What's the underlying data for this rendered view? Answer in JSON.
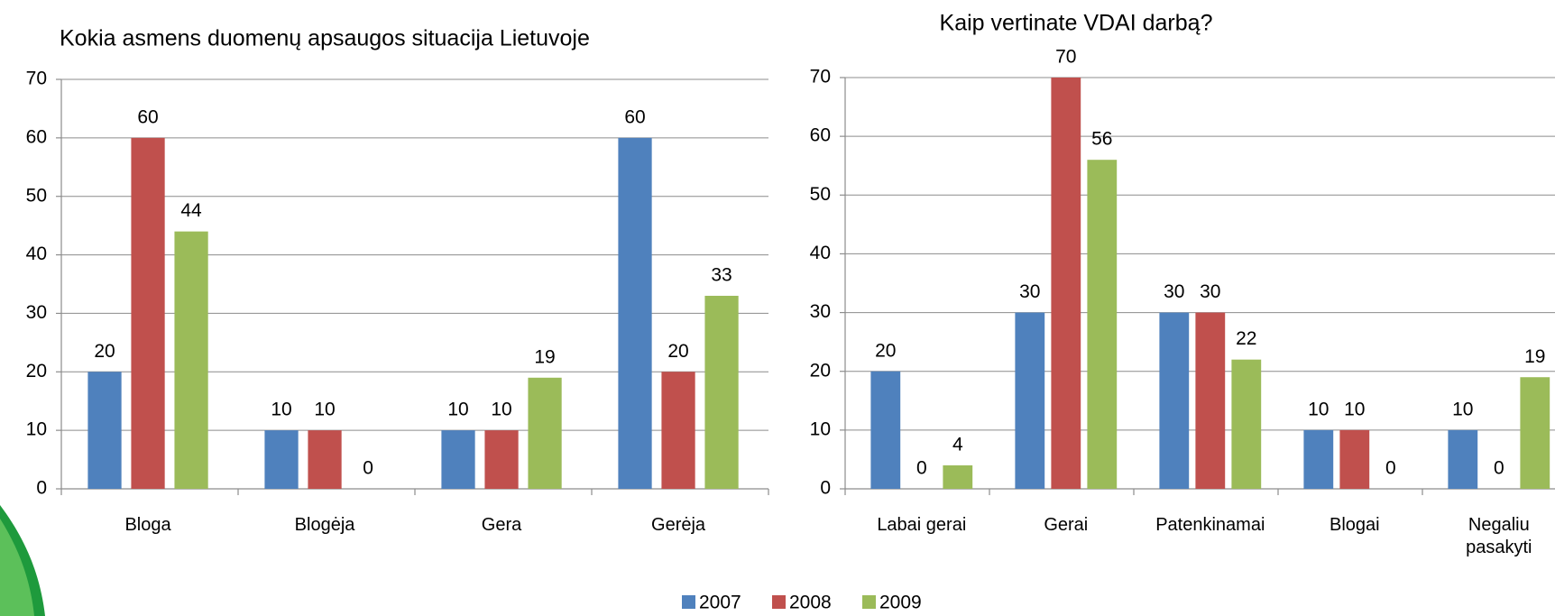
{
  "chart_data": [
    {
      "type": "bar",
      "title": "Kokia asmens duomenų apsaugos situacija Lietuvoje",
      "categories": [
        "Bloga",
        "Blogėja",
        "Gera",
        "Gerėja"
      ],
      "series": [
        {
          "name": "2007",
          "color": "#4f81bd",
          "values": [
            20,
            10,
            10,
            60
          ]
        },
        {
          "name": "2008",
          "color": "#c0504d",
          "values": [
            60,
            10,
            10,
            20
          ]
        },
        {
          "name": "2009",
          "color": "#9bbb59",
          "values": [
            44,
            0,
            19,
            33
          ]
        }
      ],
      "ylim": [
        0,
        70
      ],
      "yticks": [
        0,
        10,
        20,
        30,
        40,
        50,
        60,
        70
      ],
      "grid": true
    },
    {
      "type": "bar",
      "title": "Kaip vertinate VDAI darbą?",
      "categories": [
        "Labai gerai",
        "Gerai",
        "Patenkinamai",
        "Blogai",
        "Negaliu pasakyti"
      ],
      "series": [
        {
          "color": "#4f81bd",
          "values": [
            20,
            30,
            30,
            10,
            10
          ]
        },
        {
          "color": "#c0504d",
          "values": [
            0,
            70,
            30,
            10,
            0
          ]
        },
        {
          "color": "#9bbb59",
          "values": [
            4,
            56,
            22,
            0,
            19
          ]
        }
      ],
      "ylim": [
        0,
        70
      ],
      "yticks": [
        0,
        10,
        20,
        30,
        40,
        50,
        60,
        70
      ],
      "grid": true
    }
  ]
}
